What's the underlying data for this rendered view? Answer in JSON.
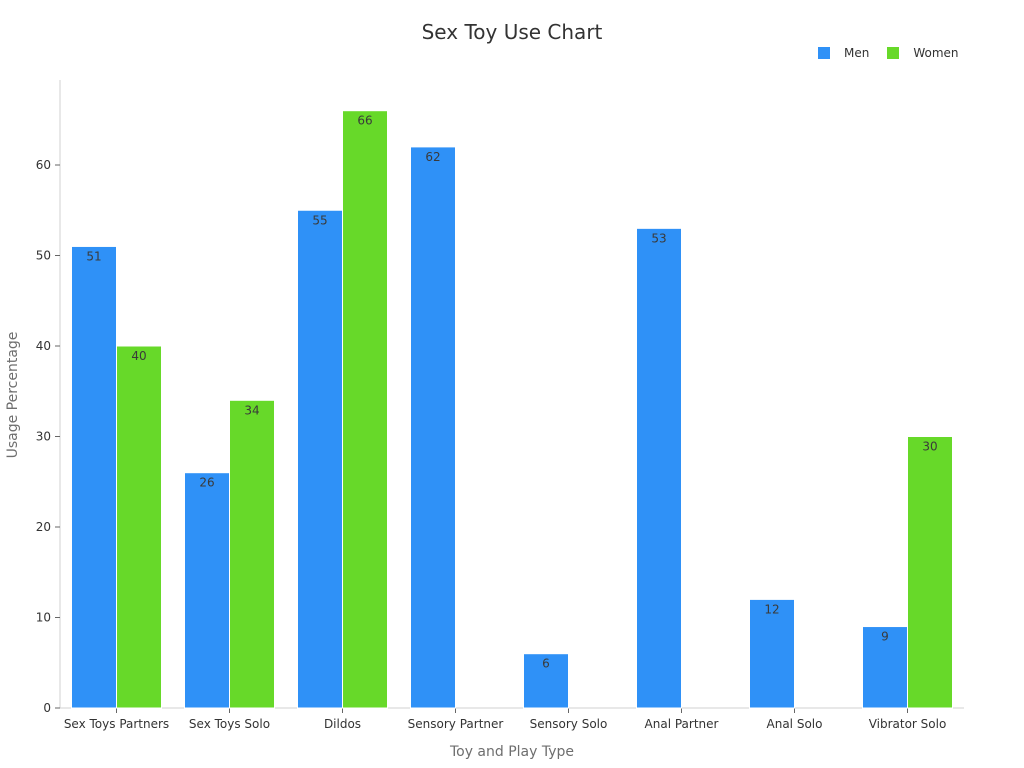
{
  "chart_data": {
    "type": "bar",
    "title": "Sex Toy Use Chart",
    "xlabel": "Toy and Play Type",
    "ylabel": "Usage Percentage",
    "categories": [
      "Sex Toys Partners",
      "Sex Toys Solo",
      "Dildos",
      "Sensory Partner",
      "Sensory Solo",
      "Anal Partner",
      "Anal Solo",
      "Vibrator Solo"
    ],
    "series": [
      {
        "name": "Men",
        "color": "#2f91f7",
        "values": [
          51,
          26,
          55,
          62,
          6,
          53,
          12,
          9
        ]
      },
      {
        "name": "Women",
        "color": "#67d929",
        "values": [
          40,
          34,
          66,
          null,
          null,
          null,
          null,
          30
        ]
      }
    ],
    "yticks": [
      0,
      10,
      20,
      30,
      40,
      50,
      60
    ],
    "ylim": [
      0,
      70
    ],
    "grid": false,
    "legend_position": "top-right"
  },
  "legend": {
    "items": [
      {
        "label": "Men",
        "color": "#2f91f7"
      },
      {
        "label": "Women",
        "color": "#67d929"
      }
    ]
  }
}
